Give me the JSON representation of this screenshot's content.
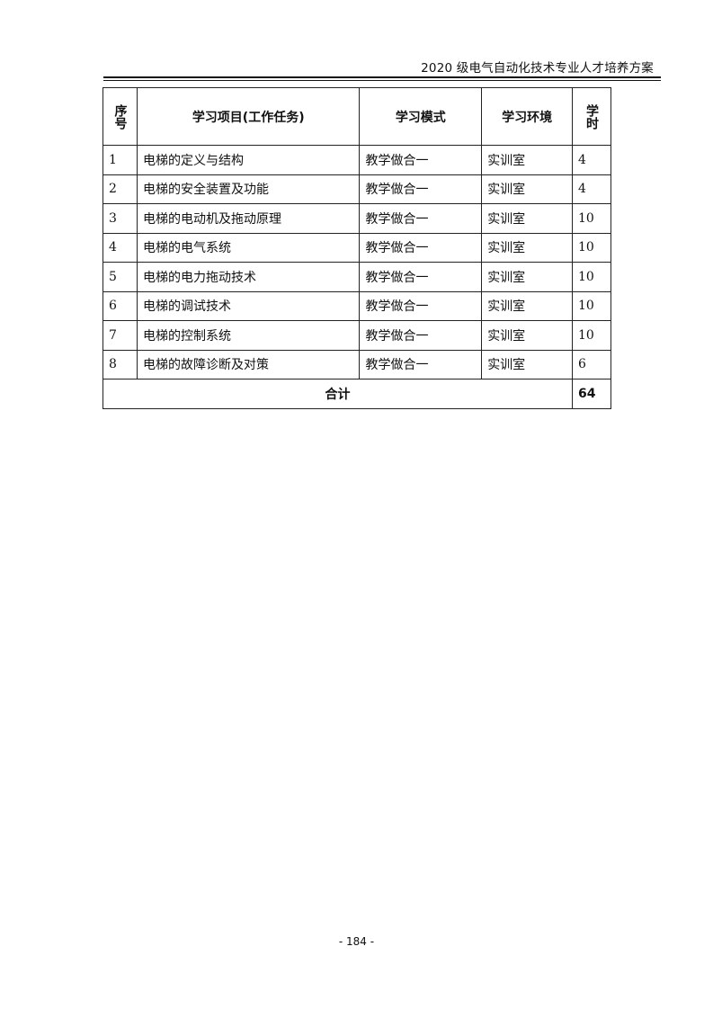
{
  "header": {
    "title": "2020 级电气自动化技术专业人才培养方案"
  },
  "table": {
    "columns": [
      "序号",
      "学习项目(工作任务)",
      "学习模式",
      "学习环境",
      "学时"
    ],
    "rows": [
      {
        "no": "1",
        "project": "电梯的定义与结构",
        "mode": "教学做合一",
        "env": "实训室",
        "hours": "4"
      },
      {
        "no": "2",
        "project": "电梯的安全装置及功能",
        "mode": "教学做合一",
        "env": "实训室",
        "hours": "4"
      },
      {
        "no": "3",
        "project": "电梯的电动机及拖动原理",
        "mode": "教学做合一",
        "env": "实训室",
        "hours": "10"
      },
      {
        "no": "4",
        "project": "电梯的电气系统",
        "mode": "教学做合一",
        "env": "实训室",
        "hours": "10"
      },
      {
        "no": "5",
        "project": "电梯的电力拖动技术",
        "mode": "教学做合一",
        "env": "实训室",
        "hours": "10"
      },
      {
        "no": "6",
        "project": "电梯的调试技术",
        "mode": "教学做合一",
        "env": "实训室",
        "hours": "10"
      },
      {
        "no": "7",
        "project": "电梯的控制系统",
        "mode": "教学做合一",
        "env": "实训室",
        "hours": "10"
      },
      {
        "no": "8",
        "project": "电梯的故障诊断及对策",
        "mode": "教学做合一",
        "env": "实训室",
        "hours": "6"
      }
    ],
    "total_label": "合计",
    "total_value": "64"
  },
  "footer": {
    "page": "- 184 -"
  }
}
